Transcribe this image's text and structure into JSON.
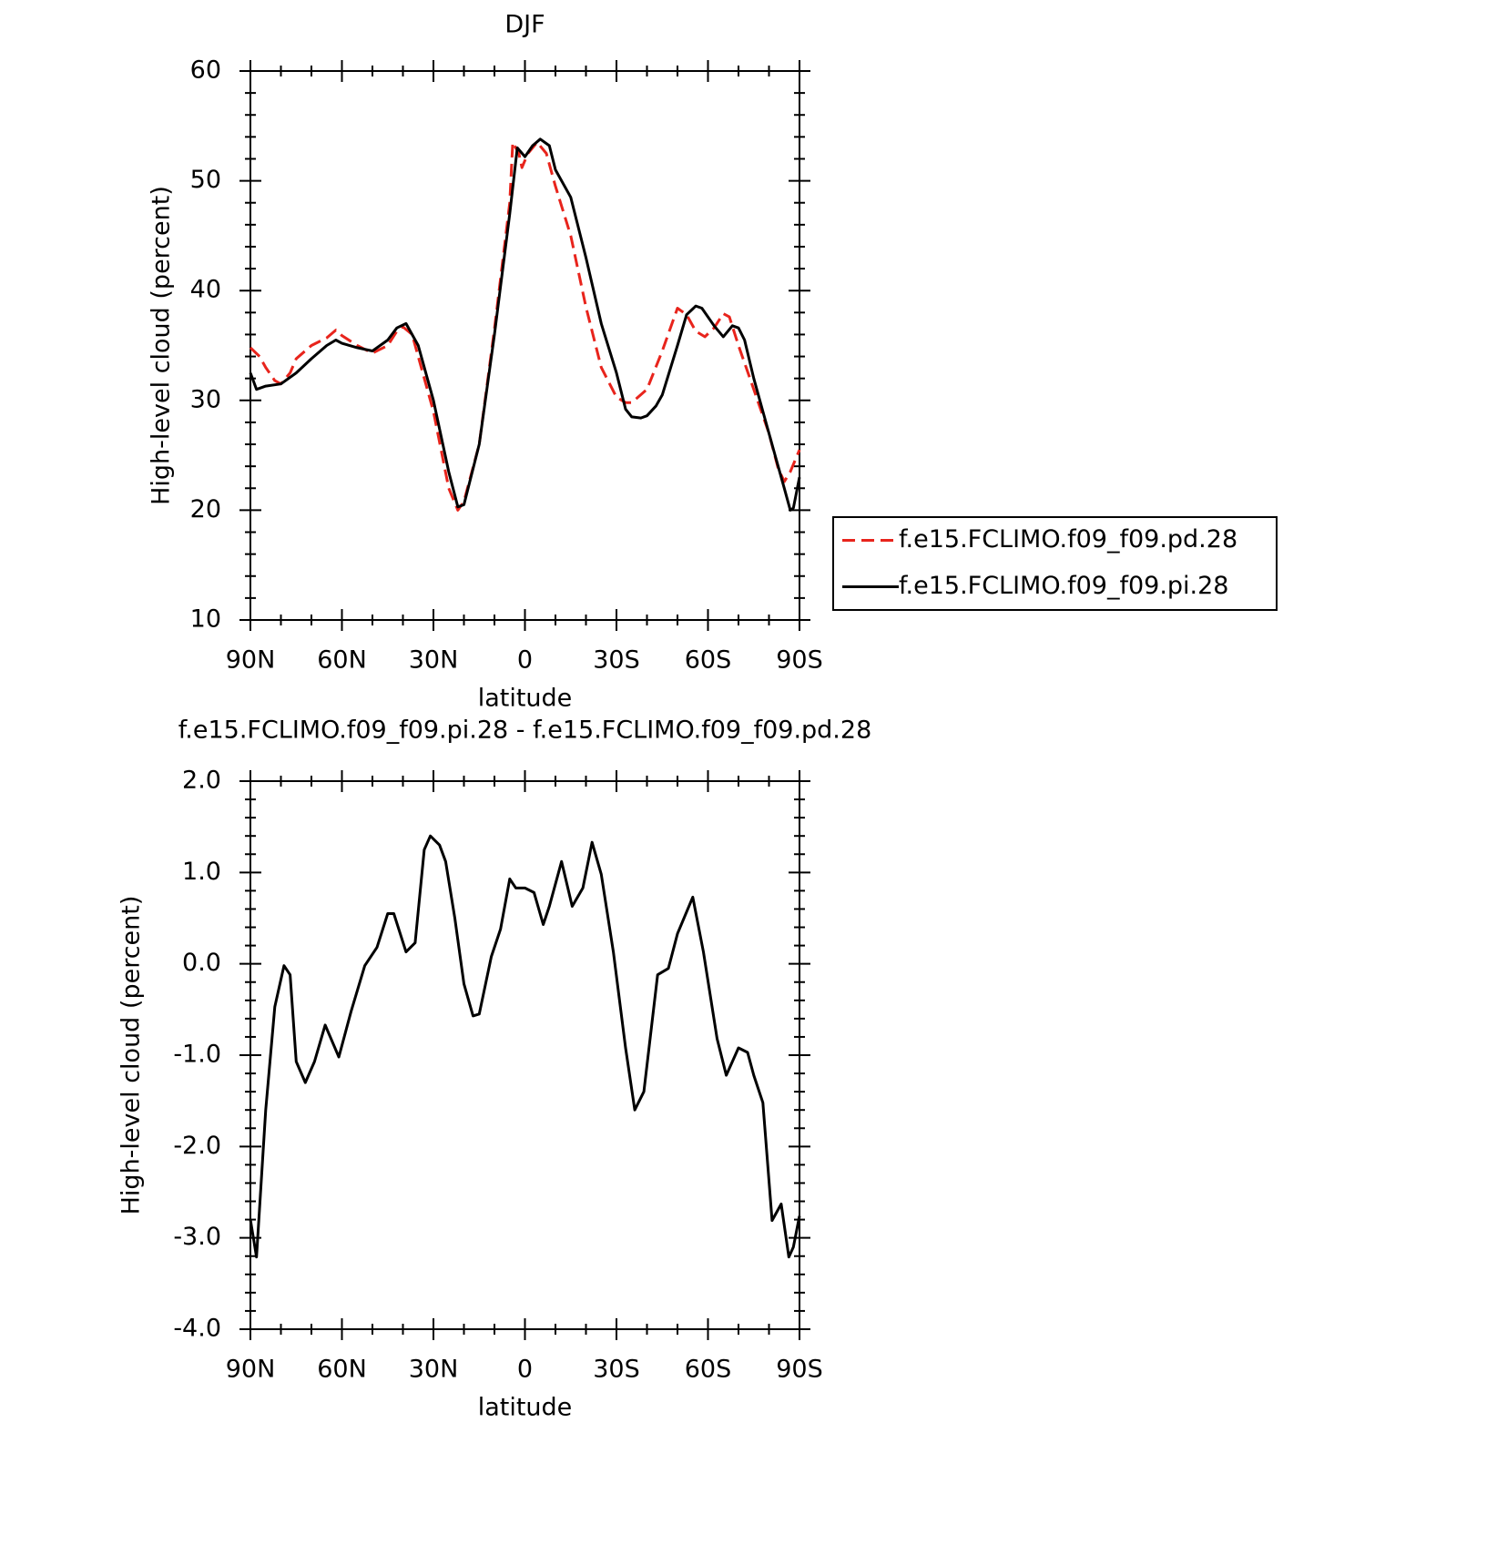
{
  "chart_data": [
    {
      "type": "line",
      "title": "DJF",
      "x_label": "latitude",
      "y_label": "High-level cloud (percent)",
      "xlim": [
        90,
        -90
      ],
      "xticks": [
        {
          "value": 90,
          "label": "90N"
        },
        {
          "value": 60,
          "label": "60N"
        },
        {
          "value": 30,
          "label": "30N"
        },
        0,
        {
          "value": -30,
          "label": "30S"
        },
        {
          "value": -60,
          "label": "60S"
        },
        {
          "value": -90,
          "label": "90S"
        }
      ],
      "ylim": [
        10,
        60
      ],
      "yticks": [
        10,
        20,
        30,
        40,
        50,
        60
      ],
      "legend": "right",
      "series": [
        {
          "name": "f.e15.FCLIMO.f09_f09.pd.28",
          "color": "#e8241c",
          "line_style": "dashed",
          "x": [
            90,
            87,
            85,
            82,
            80,
            77,
            75,
            70,
            65,
            62,
            60,
            55,
            50,
            45,
            42,
            40,
            37,
            35,
            30,
            25,
            22,
            20,
            15,
            10,
            5,
            4,
            2,
            1,
            -1,
            -4,
            -7,
            -10,
            -15,
            -20,
            -25,
            -30,
            -33,
            -35,
            -40,
            -45,
            -50,
            -53,
            -56,
            -59,
            -62,
            -65,
            -67,
            -70,
            -75,
            -80,
            -83,
            -85,
            -87,
            -90
          ],
          "values": [
            34.8,
            34,
            33,
            31.8,
            31.5,
            32.5,
            33.8,
            35,
            35.7,
            36.4,
            35.9,
            35,
            34.3,
            35,
            36.3,
            36.7,
            36,
            34,
            29,
            22,
            20,
            20.8,
            26,
            36.5,
            48,
            53.5,
            52.5,
            51.2,
            52.5,
            53.5,
            52.5,
            49.5,
            45,
            38.5,
            33,
            30.3,
            29.8,
            29.8,
            31,
            34.5,
            38.4,
            37.8,
            36.3,
            35.8,
            36.6,
            37.9,
            37.6,
            35,
            31,
            27,
            23.8,
            22.6,
            23.5,
            25.5
          ]
        },
        {
          "name": "f.e15.FCLIMO.f09_f09.pi.28",
          "color": "#000000",
          "line_style": "solid",
          "x": [
            90,
            88,
            85,
            80,
            75,
            70,
            65,
            62,
            60,
            55,
            50,
            45,
            42,
            39,
            35,
            30,
            25,
            22,
            20,
            15,
            10,
            5,
            2.5,
            0,
            -2.5,
            -5,
            -8,
            -10,
            -15,
            -20,
            -25,
            -30,
            -33,
            -35,
            -38,
            -40,
            -43,
            -45,
            -50,
            -53,
            -56,
            -58,
            -62,
            -65,
            -68,
            -70,
            -72,
            -75,
            -78,
            -82,
            -85,
            -87,
            -88,
            -90
          ],
          "values": [
            32.5,
            31,
            31.3,
            31.5,
            32.5,
            33.8,
            35,
            35.5,
            35.2,
            34.8,
            34.5,
            35.5,
            36.6,
            37,
            35,
            30,
            23.5,
            20.3,
            20.5,
            26,
            36,
            47,
            53,
            52.2,
            53.2,
            53.8,
            53.2,
            51,
            48.5,
            43,
            37,
            32.5,
            29.2,
            28.5,
            28.4,
            28.6,
            29.5,
            30.5,
            35,
            37.8,
            38.6,
            38.4,
            36.8,
            35.8,
            36.8,
            36.6,
            35.5,
            32,
            29,
            25,
            22,
            20,
            20.2,
            23
          ]
        }
      ]
    },
    {
      "type": "line",
      "title": "f.e15.FCLIMO.f09_f09.pi.28 - f.e15.FCLIMO.f09_f09.pd.28",
      "x_label": "latitude",
      "y_label": "High-level cloud (percent)",
      "xlim": [
        90,
        -90
      ],
      "xticks": [
        {
          "value": 90,
          "label": "90N"
        },
        {
          "value": 60,
          "label": "60N"
        },
        {
          "value": 30,
          "label": "30N"
        },
        0,
        {
          "value": -30,
          "label": "30S"
        },
        {
          "value": -60,
          "label": "60S"
        },
        {
          "value": -90,
          "label": "90S"
        }
      ],
      "ylim": [
        -4,
        2
      ],
      "yticks": [
        {
          "value": -4,
          "label": "-4.0"
        },
        {
          "value": -3,
          "label": "-3.0"
        },
        {
          "value": -2,
          "label": "-2.0"
        },
        {
          "value": -1,
          "label": "-1.0"
        },
        {
          "value": 0,
          "label": "0.0"
        },
        {
          "value": 1,
          "label": "1.0"
        },
        {
          "value": 2,
          "label": "2.0"
        }
      ],
      "series": [
        {
          "color": "#000000",
          "line_style": "solid",
          "x": [
            90,
            88,
            85,
            82,
            79,
            77,
            75,
            72,
            69,
            65.5,
            61,
            57,
            52.5,
            48.5,
            45,
            43,
            39,
            36,
            33,
            31,
            28,
            26,
            23,
            20,
            17,
            15,
            11,
            8,
            5,
            3,
            0,
            -3,
            -6,
            -8,
            -12,
            -15.5,
            -19,
            -22,
            -25,
            -29,
            -33,
            -36,
            -39,
            -43.5,
            -47,
            -50,
            -55,
            -58.5,
            -63,
            -66,
            -70,
            -73,
            -75,
            -78,
            -81,
            -84,
            -86.5,
            -88,
            -90
          ],
          "values": [
            -2.8,
            -3.21,
            -1.6,
            -0.47,
            -0.02,
            -0.12,
            -1.07,
            -1.3,
            -1.07,
            -0.67,
            -1.02,
            -0.52,
            -0.02,
            0.18,
            0.55,
            0.55,
            0.13,
            0.23,
            1.25,
            1.4,
            1.3,
            1.12,
            0.5,
            -0.22,
            -0.57,
            -0.55,
            0.08,
            0.38,
            0.93,
            0.83,
            0.83,
            0.78,
            0.43,
            0.63,
            1.12,
            0.63,
            0.83,
            1.33,
            0.98,
            0.13,
            -0.92,
            -1.6,
            -1.4,
            -0.12,
            -0.05,
            0.33,
            0.73,
            0.13,
            -0.82,
            -1.22,
            -0.92,
            -0.97,
            -1.22,
            -1.52,
            -2.81,
            -2.63,
            -3.21,
            -3.1,
            -2.76
          ]
        }
      ]
    }
  ]
}
